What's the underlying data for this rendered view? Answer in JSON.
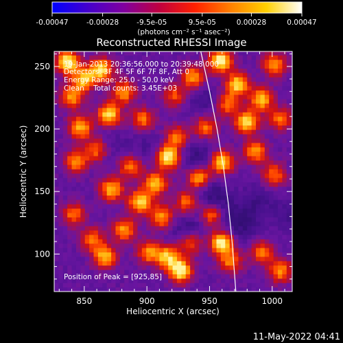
{
  "colorbar": {
    "tick_labels": [
      "-0.00047",
      "-0.00028",
      "-9.5e-05",
      "9.5e-05",
      "0.00028",
      "0.00047"
    ],
    "tick_values": [
      -0.00047,
      -0.00028,
      -9.5e-05,
      9.5e-05,
      0.00028,
      0.00047
    ],
    "range": [
      -0.00047,
      0.00047
    ],
    "unit_label": "(photons cm⁻² s⁻¹ asec⁻²)",
    "colors": [
      "#0000ff",
      "#4400cc",
      "#8000a0",
      "#c00040",
      "#ff2000",
      "#ff8000",
      "#ffd000",
      "#ffffff"
    ]
  },
  "chart_data": {
    "type": "heatmap",
    "title": "Reconstructed RHESSI Image",
    "xlabel": "Heliocentric X (arcsec)",
    "ylabel": "Heliocentric Y (arcsec)",
    "xlim": [
      826,
      1016
    ],
    "ylim": [
      70,
      262
    ],
    "x_ticks": [
      850,
      900,
      950,
      1000
    ],
    "y_ticks": [
      100,
      150,
      200,
      250
    ],
    "x_tick_labels": [
      "850",
      "900",
      "950",
      "1000"
    ],
    "y_tick_labels": [
      "100",
      "150",
      "200",
      "250"
    ],
    "info_lines": [
      "19-Jan-2013 20:36:56.000 to 20:39:48.000",
      "Detectors: 3F 4F 5F 6F 7F 8F, Att 0",
      "Energy Range: 25.0 - 50.0 keV",
      "Clean    Total counts: 3.45E+03"
    ],
    "peak_label": "Position of Peak = [925,85]",
    "peak": [
      925,
      85
    ],
    "limb_points": [
      [
        943,
        262
      ],
      [
        950,
        230
      ],
      [
        956,
        200
      ],
      [
        961,
        170
      ],
      [
        965,
        140
      ],
      [
        968,
        110
      ],
      [
        971,
        70
      ]
    ],
    "hot_spots": [
      [
        835,
        252,
        1.0
      ],
      [
        848,
        238,
        0.8
      ],
      [
        838,
        224,
        0.7
      ],
      [
        862,
        246,
        0.9
      ],
      [
        845,
        200,
        0.8
      ],
      [
        868,
        210,
        0.9
      ],
      [
        880,
        228,
        0.7
      ],
      [
        895,
        206,
        0.6
      ],
      [
        842,
        172,
        0.7
      ],
      [
        858,
        182,
        0.6
      ],
      [
        870,
        150,
        0.8
      ],
      [
        885,
        168,
        0.6
      ],
      [
        893,
        140,
        0.9
      ],
      [
        905,
        155,
        0.8
      ],
      [
        915,
        176,
        1.0
      ],
      [
        922,
        192,
        0.6
      ],
      [
        910,
        128,
        0.7
      ],
      [
        880,
        118,
        0.7
      ],
      [
        865,
        96,
        0.8
      ],
      [
        900,
        100,
        0.7
      ],
      [
        925,
        85,
        1.0
      ],
      [
        915,
        96,
        0.8
      ],
      [
        933,
        108,
        0.6
      ],
      [
        940,
        160,
        0.8
      ],
      [
        930,
        140,
        0.6
      ],
      [
        951,
        130,
        0.7
      ],
      [
        945,
        200,
        0.6
      ],
      [
        935,
        240,
        0.7
      ],
      [
        957,
        253,
        1.0
      ],
      [
        971,
        234,
        0.9
      ],
      [
        962,
        218,
        0.6
      ],
      [
        978,
        204,
        0.9
      ],
      [
        958,
        172,
        0.9
      ],
      [
        990,
        222,
        0.8
      ],
      [
        1000,
        250,
        0.7
      ],
      [
        1005,
        206,
        0.6
      ],
      [
        985,
        180,
        0.7
      ],
      [
        1000,
        162,
        0.6
      ],
      [
        958,
        107,
        1.0
      ],
      [
        965,
        92,
        0.6
      ],
      [
        990,
        100,
        0.6
      ],
      [
        1005,
        85,
        0.7
      ],
      [
        840,
        130,
        0.6
      ],
      [
        855,
        110,
        0.6
      ],
      [
        920,
        225,
        0.5
      ]
    ],
    "dark_spots": [
      [
        940,
        175,
        1.0
      ],
      [
        950,
        145,
        1.0
      ],
      [
        960,
        130,
        0.8
      ],
      [
        975,
        120,
        0.8
      ],
      [
        985,
        140,
        0.7
      ],
      [
        930,
        118,
        0.9
      ],
      [
        945,
        220,
        0.7
      ],
      [
        1010,
        130,
        0.6
      ],
      [
        870,
        185,
        0.5
      ],
      [
        900,
        185,
        0.5
      ]
    ]
  },
  "footer": {
    "date_text": "11-May-2022 04:41"
  }
}
